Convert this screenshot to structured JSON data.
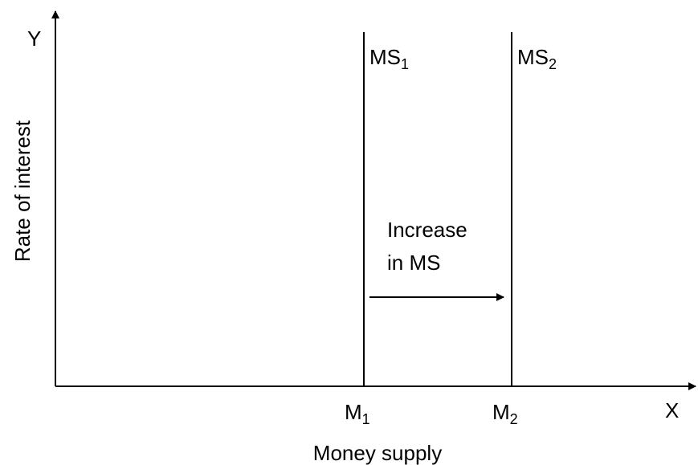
{
  "axes": {
    "y_symbol": "Y",
    "x_symbol": "X",
    "y_label": "Rate of interest",
    "x_label": "Money supply"
  },
  "curves": [
    {
      "label": "MS",
      "subscript": "1"
    },
    {
      "label": "MS",
      "subscript": "2"
    }
  ],
  "quantities": [
    {
      "label": "M",
      "subscript": "1"
    },
    {
      "label": "M",
      "subscript": "2"
    }
  ],
  "annotation": {
    "lines": [
      "Increase",
      "in MS"
    ]
  }
}
